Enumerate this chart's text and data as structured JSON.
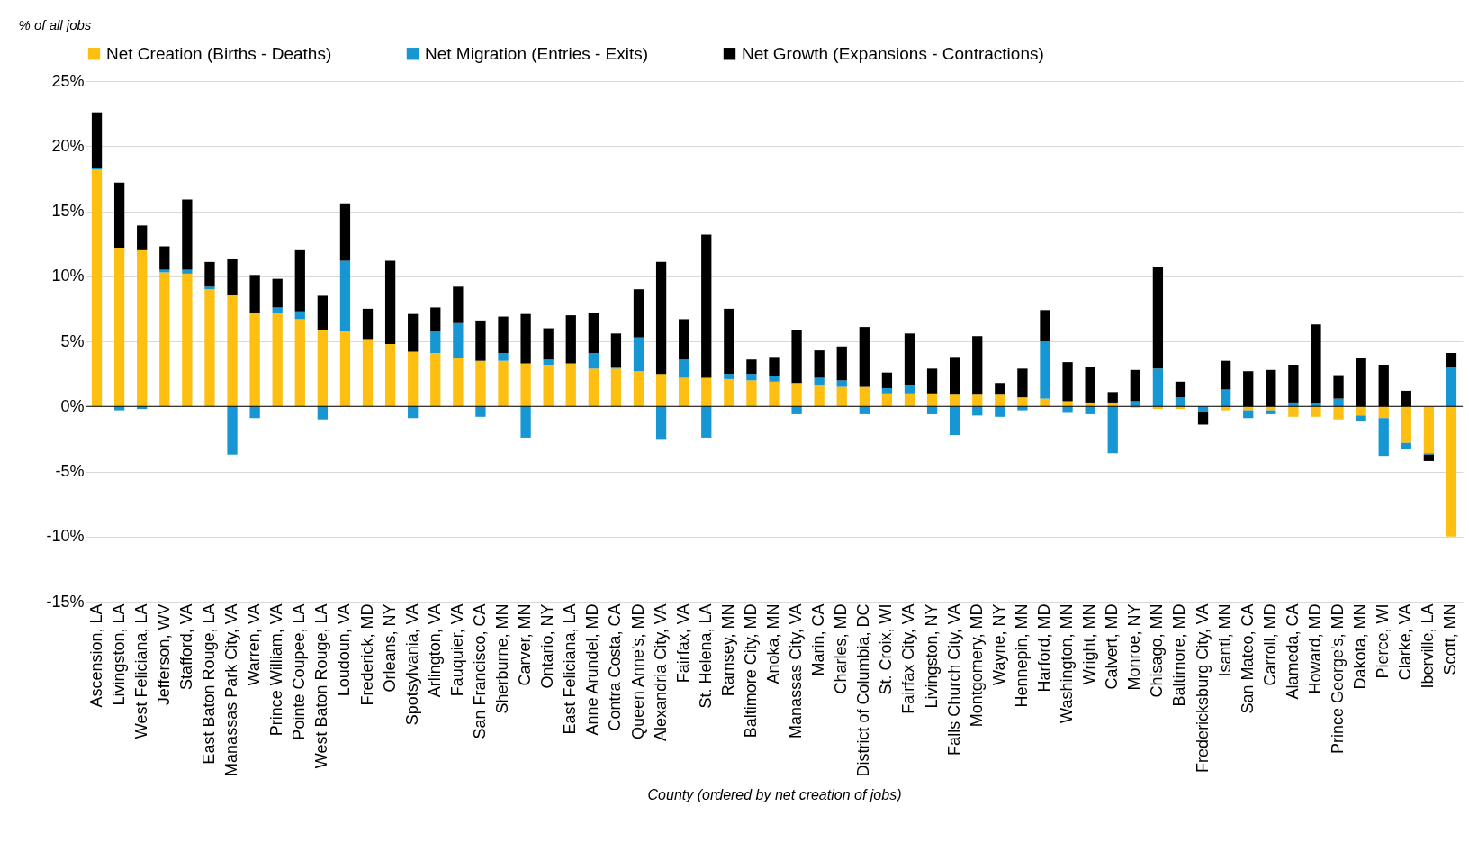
{
  "chart_data": {
    "type": "bar",
    "stacked": true,
    "ylabel": "% of all jobs",
    "xlabel": "County (ordered by net creation of jobs)",
    "categories": [
      "Ascension, LA",
      "Livingston, LA",
      "West Feliciana, LA",
      "Jefferson, WV",
      "Stafford, VA",
      "East Baton Rouge, LA",
      "Manassas Park City, VA",
      "Warren, VA",
      "Prince William, VA",
      "Pointe Coupee, LA",
      "West Baton Rouge, LA",
      "Loudoun, VA",
      "Frederick, MD",
      "Orleans, NY",
      "Spotsylvania, VA",
      "Arlington, VA",
      "Fauquier, VA",
      "San Francisco, CA",
      "Sherburne, MN",
      "Carver, MN",
      "Ontario, NY",
      "East Feliciana, LA",
      "Anne Arundel, MD",
      "Contra Costa, CA",
      "Queen Anne's, MD",
      "Alexandria City, VA",
      "Fairfax, VA",
      "St. Helena, LA",
      "Ramsey, MN",
      "Baltimore City, MD",
      "Anoka, MN",
      "Manassas City, VA",
      "Marin, CA",
      "Charles, MD",
      "District of Columbia, DC",
      "St. Croix, WI",
      "Fairfax City, VA",
      "Livingston, NY",
      "Falls Church City, VA",
      "Montgomery, MD",
      "Wayne, NY",
      "Hennepin, MN",
      "Harford, MD",
      "Washington, MN",
      "Wright, MN",
      "Calvert, MD",
      "Monroe, NY",
      "Chisago, MN",
      "Baltimore, MD",
      "Fredericksburg City, VA",
      "Isanti, MN",
      "San Mateo, CA",
      "Carroll, MD",
      "Alameda, CA",
      "Howard, MD",
      "Prince George's, MD",
      "Dakota, MN",
      "Pierce, WI",
      "Clarke, VA",
      "Iberville, LA",
      "Scott, MN"
    ],
    "series": [
      {
        "name": "Net Creation (Births - Deaths)",
        "color": "#fdbf11",
        "values": [
          18.2,
          12.2,
          12.0,
          10.3,
          10.2,
          9.0,
          8.6,
          7.2,
          7.2,
          6.7,
          5.9,
          5.8,
          5.1,
          4.8,
          4.2,
          4.1,
          3.7,
          3.5,
          3.5,
          3.3,
          3.2,
          3.3,
          2.9,
          2.9,
          2.7,
          2.5,
          2.2,
          2.2,
          2.1,
          2.0,
          1.9,
          1.8,
          1.6,
          1.5,
          1.5,
          1.0,
          1.0,
          1.0,
          0.9,
          0.9,
          0.9,
          0.7,
          0.6,
          0.4,
          0.3,
          0.3,
          -0.1,
          -0.2,
          -0.2,
          0,
          -0.3,
          -0.3,
          -0.3,
          -0.8,
          -0.8,
          -1.0,
          -0.7,
          -0.9,
          -2.8,
          -3.6,
          -10.0
        ]
      },
      {
        "name": "Net Migration (Entries - Exits)",
        "color": "#1696d2",
        "values": [
          0.1,
          -0.3,
          -0.2,
          0.2,
          0.3,
          0.2,
          -3.7,
          -0.9,
          0.4,
          0.6,
          -1.0,
          5.4,
          0.1,
          0,
          -0.9,
          1.7,
          2.7,
          -0.8,
          0.6,
          -2.4,
          0.4,
          0,
          1.2,
          0.1,
          2.6,
          -2.5,
          1.4,
          -2.4,
          0.4,
          0.5,
          0.4,
          -0.6,
          0.6,
          0.5,
          -0.6,
          0.4,
          0.6,
          -0.6,
          -2.2,
          -0.7,
          -0.8,
          -0.3,
          4.4,
          -0.5,
          -0.6,
          -3.6,
          0.4,
          2.9,
          0.7,
          -0.4,
          1.3,
          -0.6,
          -0.3,
          0.3,
          0.3,
          0.6,
          -0.4,
          -2.9,
          -0.5,
          -0.1,
          3.0
        ]
      },
      {
        "name": "Net Growth (Expansions - Contractions)",
        "color": "#000000",
        "values": [
          4.3,
          5.0,
          1.9,
          1.8,
          5.4,
          1.9,
          2.7,
          2.9,
          2.2,
          4.7,
          2.6,
          4.4,
          2.3,
          6.4,
          2.9,
          1.8,
          2.8,
          3.1,
          2.8,
          3.8,
          2.4,
          3.7,
          3.1,
          2.6,
          3.7,
          8.6,
          3.1,
          11.0,
          5.0,
          1.1,
          1.5,
          4.1,
          2.1,
          2.6,
          4.6,
          1.2,
          4.0,
          1.9,
          2.9,
          4.5,
          0.9,
          2.2,
          2.4,
          3.0,
          2.7,
          0.8,
          2.4,
          7.8,
          1.2,
          -1.0,
          2.2,
          2.7,
          2.8,
          2.9,
          6.0,
          1.8,
          3.7,
          3.2,
          1.2,
          -0.5,
          1.1
        ]
      }
    ],
    "ylim": [
      -15,
      25
    ],
    "yticks": [
      {
        "value": -15,
        "label": "-15%"
      },
      {
        "value": -10,
        "label": "-10%"
      },
      {
        "value": -5,
        "label": "-5%"
      },
      {
        "value": 0,
        "label": "0%"
      },
      {
        "value": 5,
        "label": "5%"
      },
      {
        "value": 10,
        "label": "10%"
      },
      {
        "value": 15,
        "label": "15%"
      },
      {
        "value": 20,
        "label": "20%"
      },
      {
        "value": 25,
        "label": "25%"
      }
    ],
    "grid": "y",
    "legend": "top",
    "ref_lines": [
      {
        "axis": "y",
        "value": 0,
        "color": "#000000"
      }
    ]
  }
}
